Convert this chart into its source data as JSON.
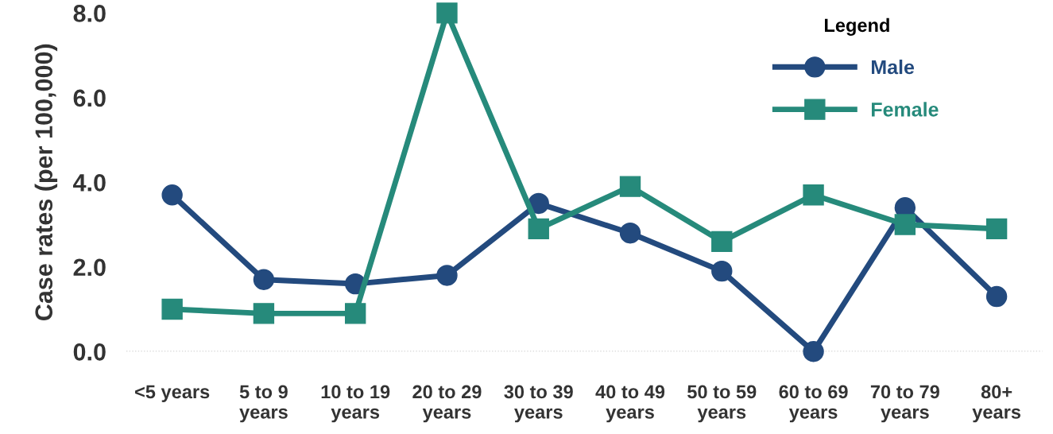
{
  "chart_data": {
    "type": "line",
    "ylabel": "Case rates (per 100,000)",
    "legend_title": "Legend",
    "legend": "top right",
    "categories": [
      "<5 years",
      "5 to 9\nyears",
      "10 to 19\nyears",
      "20 to 29\nyears",
      "30 to 39\nyears",
      "40 to 49\nyears",
      "50 to 59\nyears",
      "60 to 69\nyears",
      "70 to 79\nyears",
      "80+\nyears"
    ],
    "series": [
      {
        "name": "Male",
        "color": "#234a7e",
        "marker": "circle",
        "values": [
          3.7,
          1.7,
          1.6,
          1.8,
          3.5,
          2.8,
          1.9,
          0.0,
          3.4,
          1.3
        ]
      },
      {
        "name": "Female",
        "color": "#268a7b",
        "marker": "square",
        "values": [
          1.0,
          0.9,
          0.9,
          8.0,
          2.9,
          3.9,
          2.6,
          3.7,
          3.0,
          2.9
        ]
      }
    ],
    "ylim": [
      0,
      8
    ],
    "yticks": [
      {
        "value": 0,
        "label": "0.0"
      },
      {
        "value": 2,
        "label": "2.0"
      },
      {
        "value": 4,
        "label": "4.0"
      },
      {
        "value": 6,
        "label": "6.0"
      },
      {
        "value": 8,
        "label": "8.0"
      }
    ],
    "ref_lines": [
      {
        "axis": "y",
        "value": 0,
        "color": "#bbbbbb",
        "line_style": "dotted"
      }
    ],
    "line_style": "solid"
  }
}
